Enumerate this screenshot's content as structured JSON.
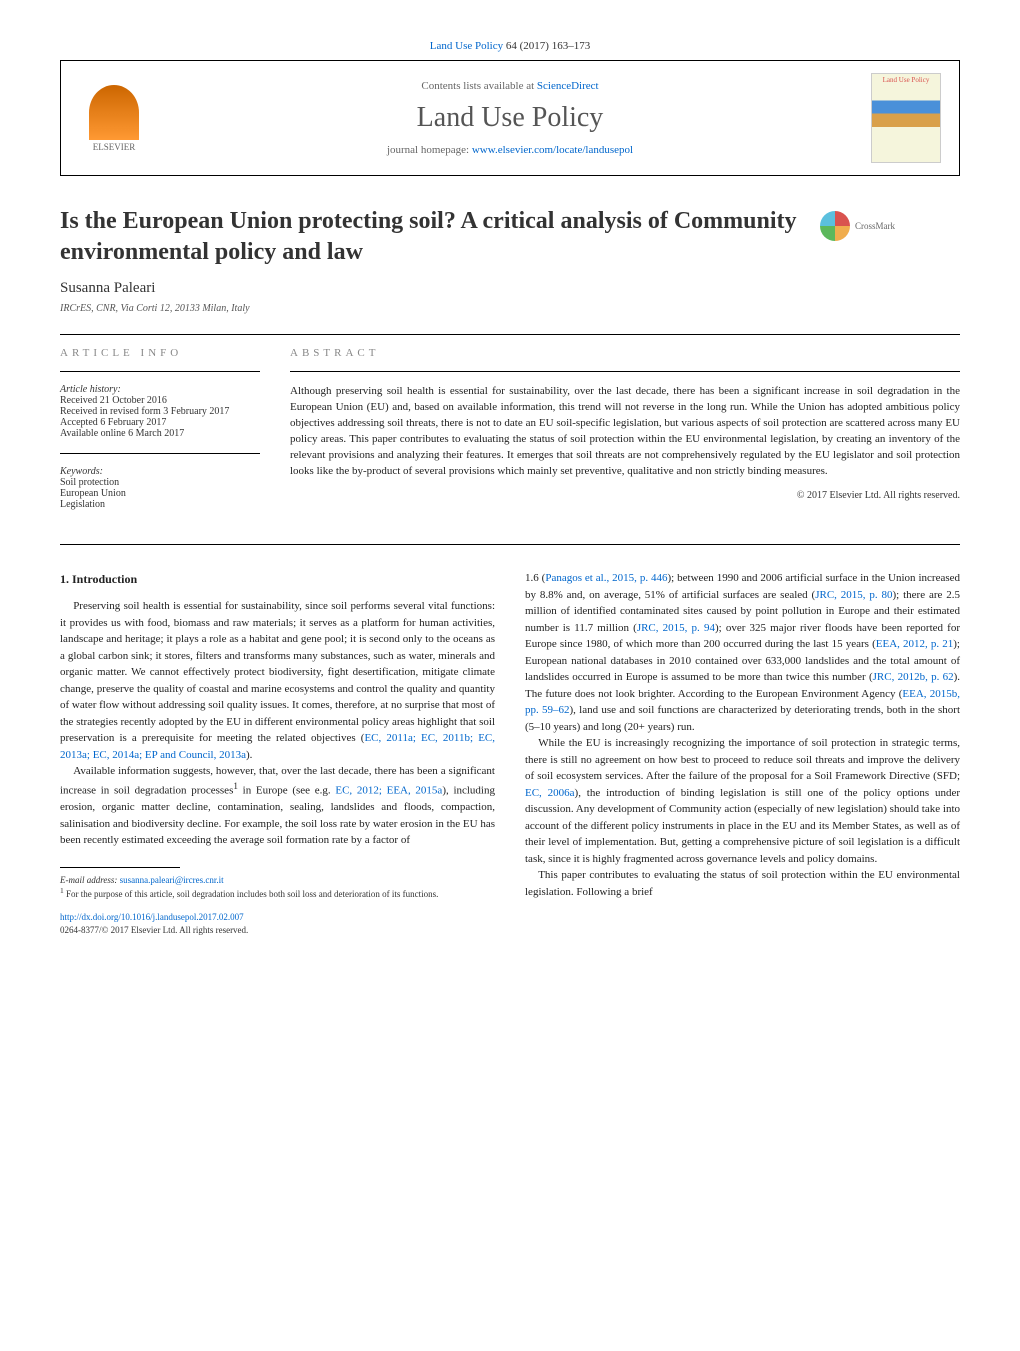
{
  "citation": {
    "journal": "Land Use Policy",
    "volume_issue": "64 (2017) 163–173"
  },
  "header": {
    "contents_prefix": "Contents lists available at ",
    "contents_link": "ScienceDirect",
    "journal_name": "Land Use Policy",
    "homepage_prefix": "journal homepage: ",
    "homepage_url": "www.elsevier.com/locate/landusepol",
    "publisher": "ELSEVIER",
    "cover_title": "Land Use Policy"
  },
  "crossmark": "CrossMark",
  "title": "Is the European Union protecting soil? A critical analysis of Community environmental policy and law",
  "author": "Susanna Paleari",
  "affiliation": "IRCrES, CNR, Via Corti 12, 20133 Milan, Italy",
  "article_info": {
    "heading": "ARTICLE INFO",
    "history_label": "Article history:",
    "received": "Received 21 October 2016",
    "revised": "Received in revised form 3 February 2017",
    "accepted": "Accepted 6 February 2017",
    "online": "Available online 6 March 2017",
    "keywords_label": "Keywords:",
    "kw1": "Soil protection",
    "kw2": "European Union",
    "kw3": "Legislation"
  },
  "abstract": {
    "heading": "ABSTRACT",
    "text": "Although preserving soil health is essential for sustainability, over the last decade, there has been a significant increase in soil degradation in the European Union (EU) and, based on available information, this trend will not reverse in the long run. While the Union has adopted ambitious policy objectives addressing soil threats, there is not to date an EU soil-specific legislation, but various aspects of soil protection are scattered across many EU policy areas. This paper contributes to evaluating the status of soil protection within the EU environmental legislation, by creating an inventory of the relevant provisions and analyzing their features. It emerges that soil threats are not comprehensively regulated by the EU legislator and soil protection looks like the by-product of several provisions which mainly set preventive, qualitative and non strictly binding measures.",
    "copyright": "© 2017 Elsevier Ltd. All rights reserved."
  },
  "body": {
    "section_heading": "1. Introduction",
    "left_p1": "Preserving soil health is essential for sustainability, since soil performs several vital functions: it provides us with food, biomass and raw materials; it serves as a platform for human activities, landscape and heritage; it plays a role as a habitat and gene pool; it is second only to the oceans as a global carbon sink; it stores, filters and transforms many substances, such as water, minerals and organic matter. We cannot effectively protect biodiversity, fight desertification, mitigate climate change, preserve the quality of coastal and marine ecosystems and control the quality and quantity of water flow without addressing soil quality issues. It comes, therefore, at no surprise that most of the strategies recently adopted by the EU in different environmental policy areas highlight that soil preservation is a prerequisite for meeting the related objectives (",
    "left_p1_cite": "EC, 2011a; EC, 2011b; EC, 2013a; EC, 2014a; EP and Council, 2013a",
    "left_p1_end": ").",
    "left_p2_a": "Available information suggests, however, that, over the last decade, there has been a significant increase in soil degradation processes",
    "left_p2_sup": "1",
    "left_p2_b": " in Europe (see e.g. ",
    "left_p2_cite": "EC, 2012; EEA, 2015a",
    "left_p2_c": "), including erosion, organic matter decline, contamination, sealing, landslides and floods, compaction, salinisation and biodiversity decline. For example, the soil loss rate by water erosion in the EU has been recently estimated exceeding the average soil formation rate by a factor of",
    "right_p1_a": "1.6 (",
    "right_cite1": "Panagos et al., 2015, p. 446",
    "right_p1_b": "); between 1990 and 2006 artificial surface in the Union increased by 8.8% and, on average, 51% of artificial surfaces are sealed (",
    "right_cite2": "JRC, 2015, p. 80",
    "right_p1_c": "); there are 2.5 million of identified contaminated sites caused by point pollution in Europe and their estimated number is 11.7 million (",
    "right_cite3": "JRC, 2015, p. 94",
    "right_p1_d": "); over 325 major river floods have been reported for Europe since 1980, of which more than 200 occurred during the last 15 years (",
    "right_cite4": "EEA, 2012, p. 21",
    "right_p1_e": "); European national databases in 2010 contained over 633,000 landslides and the total amount of landslides occurred in Europe is assumed to be more than twice this number (",
    "right_cite5": "JRC, 2012b, p. 62",
    "right_p1_f": "). The future does not look brighter. According to the European Environment Agency (",
    "right_cite6": "EEA, 2015b, pp. 59–62",
    "right_p1_g": "), land use and soil functions are characterized by deteriorating trends, both in the short (5–10 years) and long (20+ years) run.",
    "right_p2_a": "While the EU is increasingly recognizing the importance of soil protection in strategic terms, there is still no agreement on how best to proceed to reduce soil threats and improve the delivery of soil ecosystem services. After the failure of the proposal for a Soil Framework Directive (SFD; ",
    "right_cite7": "EC, 2006a",
    "right_p2_b": "), the introduction of binding legislation is still one of the policy options under discussion. Any development of Community action (especially of new legislation) should take into account of the different policy instruments in place in the EU and its Member States, as well as of their level of implementation. But, getting a comprehensive picture of soil legislation is a difficult task, since it is highly fragmented across governance levels and policy domains.",
    "right_p3": "This paper contributes to evaluating the status of soil protection within the EU environmental legislation. Following a brief"
  },
  "footnotes": {
    "email_label": "E-mail address: ",
    "email": "susanna.paleari@ircres.cnr.it",
    "fn1_num": "1",
    "fn1_text": " For the purpose of this article, soil degradation includes both soil loss and deterioration of its functions."
  },
  "doi": {
    "url": "http://dx.doi.org/10.1016/j.landusepol.2017.02.007",
    "issn_line": "0264-8377/© 2017 Elsevier Ltd. All rights reserved."
  },
  "colors": {
    "link": "#0066cc",
    "heading_gray": "#888888",
    "text": "#222222"
  }
}
